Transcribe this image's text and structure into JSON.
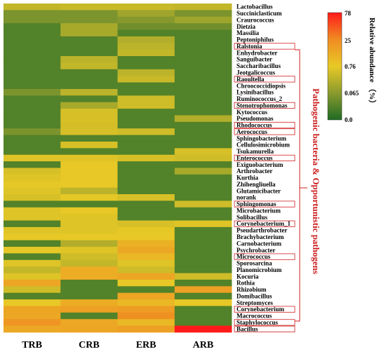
{
  "chart_data": {
    "type": "heatmap",
    "columns": [
      "TRB",
      "CRB",
      "ERB",
      "ARB"
    ],
    "rows": [
      {
        "genus": "Lactobacillus",
        "values": [
          0.3,
          0.35,
          0.35,
          0.3
        ],
        "highlight": false
      },
      {
        "genus": "Succiniclasticum",
        "values": [
          0.05,
          0.05,
          0.12,
          0.05
        ],
        "highlight": false
      },
      {
        "genus": "Craurococcus",
        "values": [
          0.05,
          0.05,
          0.06,
          0.12
        ],
        "highlight": false
      },
      {
        "genus": "Dietzia",
        "values": [
          0.02,
          0.15,
          0.04,
          0.04
        ],
        "highlight": false
      },
      {
        "genus": "Massilia",
        "values": [
          0.02,
          0.15,
          0.02,
          0.02
        ],
        "highlight": false
      },
      {
        "genus": "Peptoniphilus",
        "values": [
          0.02,
          0.02,
          0.2,
          0.02
        ],
        "highlight": false
      },
      {
        "genus": "Ralstonia",
        "values": [
          0.02,
          0.02,
          0.25,
          0.02
        ],
        "highlight": true
      },
      {
        "genus": "Enhydrobacter",
        "values": [
          0.02,
          0.02,
          0.3,
          0.02
        ],
        "highlight": false
      },
      {
        "genus": "Sanguibacter",
        "values": [
          0.02,
          0.25,
          0.02,
          0.02
        ],
        "highlight": false
      },
      {
        "genus": "Saccharibacillus",
        "values": [
          0.02,
          0.3,
          0.02,
          0.02
        ],
        "highlight": false
      },
      {
        "genus": "Jeotgalicoccus",
        "values": [
          0.02,
          0.02,
          0.25,
          0.02
        ],
        "highlight": false
      },
      {
        "genus": "Raoultella",
        "values": [
          0.02,
          0.02,
          0.35,
          0.02
        ],
        "highlight": true
      },
      {
        "genus": "Chroococcidiopsis",
        "values": [
          0.02,
          0.02,
          0.02,
          0.02
        ],
        "highlight": false
      },
      {
        "genus": "Lysinibacillus",
        "values": [
          0.05,
          0.25,
          0.02,
          0.02
        ],
        "highlight": false
      },
      {
        "genus": "Ruminococcus_2",
        "values": [
          0.02,
          0.02,
          0.4,
          0.02
        ],
        "highlight": false
      },
      {
        "genus": "Stenotrophomonas",
        "values": [
          0.02,
          0.15,
          0.4,
          0.02
        ],
        "highlight": true
      },
      {
        "genus": "Kytococcus",
        "values": [
          0.02,
          0.5,
          0.02,
          0.02
        ],
        "highlight": false
      },
      {
        "genus": "Pseudomonas",
        "values": [
          0.02,
          0.5,
          0.02,
          0.2
        ],
        "highlight": false
      },
      {
        "genus": "Rhodococcus",
        "values": [
          0.02,
          0.45,
          0.02,
          0.02
        ],
        "highlight": true
      },
      {
        "genus": "Aerococcus",
        "values": [
          0.05,
          0.5,
          0.4,
          0.02
        ],
        "highlight": true
      },
      {
        "genus": "Sphingobacterium",
        "values": [
          0.02,
          0.02,
          0.02,
          0.02
        ],
        "highlight": false
      },
      {
        "genus": "Cellulosimicrobium",
        "values": [
          0.02,
          0.5,
          0.02,
          0.02
        ],
        "highlight": false
      },
      {
        "genus": "Tsukamurella",
        "values": [
          0.02,
          0.02,
          0.02,
          0.5
        ],
        "highlight": false
      },
      {
        "genus": "Enterococcus",
        "values": [
          0.6,
          0.6,
          0.5,
          0.4
        ],
        "highlight": true
      },
      {
        "genus": "Exiguobacterium",
        "values": [
          0.02,
          0.8,
          0.02,
          0.02
        ],
        "highlight": false
      },
      {
        "genus": "Arthrobacter",
        "values": [
          0.5,
          0.8,
          0.02,
          0.15
        ],
        "highlight": false
      },
      {
        "genus": "Kurthia",
        "values": [
          0.6,
          0.8,
          0.02,
          0.02
        ],
        "highlight": false
      },
      {
        "genus": "Zhihengliuella",
        "values": [
          0.7,
          0.8,
          0.02,
          0.02
        ],
        "highlight": false
      },
      {
        "genus": "Glutamicibacter",
        "values": [
          0.6,
          0.25,
          0.02,
          0.02
        ],
        "highlight": false
      },
      {
        "genus": "norank",
        "values": [
          0.5,
          0.7,
          0.5,
          0.02
        ],
        "highlight": false
      },
      {
        "genus": "Sphingomonas",
        "values": [
          0.02,
          0.02,
          0.02,
          0.4
        ],
        "highlight": true
      },
      {
        "genus": "Microbacterium",
        "values": [
          0.6,
          0.8,
          0.02,
          0.02
        ],
        "highlight": false
      },
      {
        "genus": "Solibacillus",
        "values": [
          0.6,
          0.6,
          0.02,
          0.02
        ],
        "highlight": false
      },
      {
        "genus": "Corynebacterium_1",
        "values": [
          0.02,
          0.6,
          0.5,
          0.6
        ],
        "highlight": true
      },
      {
        "genus": "Pseudarthrobacter",
        "values": [
          0.6,
          0.6,
          0.7,
          0.02
        ],
        "highlight": false
      },
      {
        "genus": "Brachybacterium",
        "values": [
          0.8,
          0.8,
          0.8,
          0.02
        ],
        "highlight": false
      },
      {
        "genus": "Carnobacterium",
        "values": [
          0.02,
          0.2,
          3.0,
          0.02
        ],
        "highlight": false
      },
      {
        "genus": "Psychrobacter",
        "values": [
          0.7,
          0.6,
          5.0,
          0.02
        ],
        "highlight": false
      },
      {
        "genus": "Micrococcus",
        "values": [
          0.02,
          0.4,
          2.0,
          0.02
        ],
        "highlight": true
      },
      {
        "genus": "Sporosarcina",
        "values": [
          0.6,
          0.3,
          0.6,
          0.02
        ],
        "highlight": false
      },
      {
        "genus": "Planomicrobium",
        "values": [
          0.3,
          4.0,
          0.4,
          0.02
        ],
        "highlight": false
      },
      {
        "genus": "Kocuria",
        "values": [
          0.6,
          4.0,
          6.0,
          0.4
        ],
        "highlight": false
      },
      {
        "genus": "Rothia",
        "values": [
          6.0,
          0.02,
          0.8,
          0.02
        ],
        "highlight": false
      },
      {
        "genus": "Rhizobium",
        "values": [
          0.4,
          0.02,
          0.02,
          8.0
        ],
        "highlight": false
      },
      {
        "genus": "Domibacillus",
        "values": [
          0.02,
          0.02,
          6.0,
          0.02
        ],
        "highlight": false
      },
      {
        "genus": "Streptomyces",
        "values": [
          0.8,
          4.0,
          2.0,
          0.8
        ],
        "highlight": false
      },
      {
        "genus": "Corynebacterium",
        "values": [
          6.0,
          8.0,
          10.0,
          0.02
        ],
        "highlight": true
      },
      {
        "genus": "Macrococcus",
        "values": [
          5.0,
          0.02,
          20.0,
          0.02
        ],
        "highlight": false
      },
      {
        "genus": "Staphylococcus",
        "values": [
          15.0,
          5.0,
          2.0,
          0.02
        ],
        "highlight": true
      },
      {
        "genus": "Bacillus",
        "values": [
          5.0,
          6.0,
          8.0,
          78.0
        ],
        "highlight": true
      }
    ],
    "legend": {
      "title": "Relative abundance （%）",
      "ticks": [
        "78",
        "25",
        "0.76",
        "0.065",
        "0.0"
      ]
    },
    "group_label": "Pathogenic bacteria & Opportunistic pathogens",
    "colors": {
      "low": "#1f6b24",
      "mid_low": "#8a9a2e",
      "mid": "#e8c926",
      "mid_high": "#f08c22",
      "high": "#ff1a1a",
      "highlight_box": "#d11f1f",
      "group_label": "#cc1f1f"
    }
  }
}
